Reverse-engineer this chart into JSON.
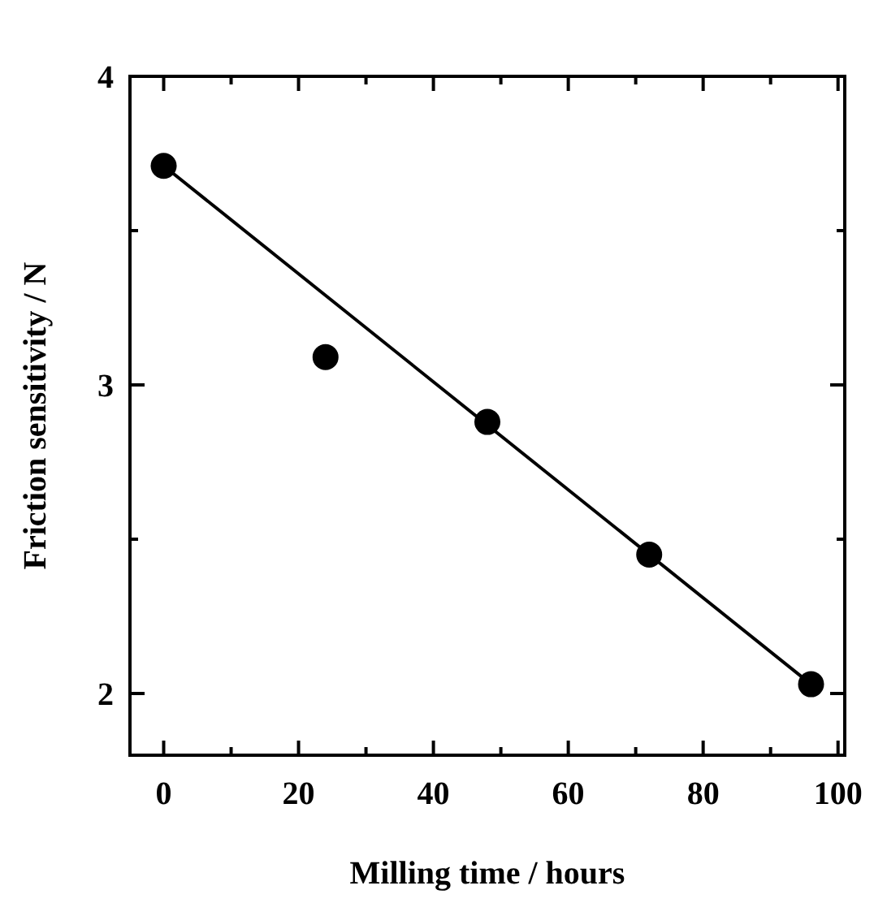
{
  "chart_data": {
    "type": "scatter",
    "xlabel": "Milling time / hours",
    "ylabel": "Friction sensitivity / N",
    "xlim": [
      -5,
      101
    ],
    "ylim": [
      1.8,
      4
    ],
    "xticks": [
      0,
      {
        "value": 10,
        "label": null
      },
      20,
      {
        "value": 30,
        "label": null
      },
      40,
      {
        "value": 50,
        "label": null
      },
      60,
      {
        "value": 70,
        "label": null
      },
      80,
      {
        "value": 90,
        "label": null
      },
      100
    ],
    "yticks": [
      2,
      {
        "value": 2.5,
        "label": null
      },
      3,
      {
        "value": 3.5,
        "label": null
      },
      4
    ],
    "grid": false,
    "series": [
      {
        "marker": "circle",
        "color": "#000000",
        "x": [
          0,
          24,
          48,
          72,
          96
        ],
        "values": [
          3.71,
          3.09,
          2.88,
          2.45,
          2.03
        ]
      },
      {
        "type": "line",
        "marker": "none",
        "line_style": "solid",
        "color": "#000000",
        "x": [
          0,
          96
        ],
        "values": [
          3.71,
          2.03
        ]
      }
    ]
  }
}
